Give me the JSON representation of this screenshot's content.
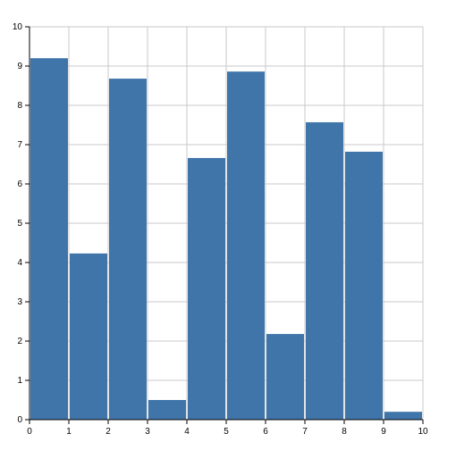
{
  "chart_data": {
    "type": "histogram",
    "bins": [
      0,
      1,
      2,
      3,
      4,
      5,
      6,
      7,
      8,
      9,
      10
    ],
    "values": [
      9.2,
      4.23,
      8.68,
      0.5,
      6.66,
      8.86,
      2.18,
      7.57,
      6.82,
      0.2
    ],
    "color": "#4075aa",
    "xlim": [
      0,
      10
    ],
    "xticks": [
      0,
      1,
      2,
      3,
      4,
      5,
      6,
      7,
      8,
      9,
      10
    ],
    "ylim": [
      0,
      10
    ],
    "yticks": [
      0,
      1,
      2,
      3,
      4,
      5,
      6,
      7,
      8,
      9,
      10
    ],
    "grid": true
  }
}
